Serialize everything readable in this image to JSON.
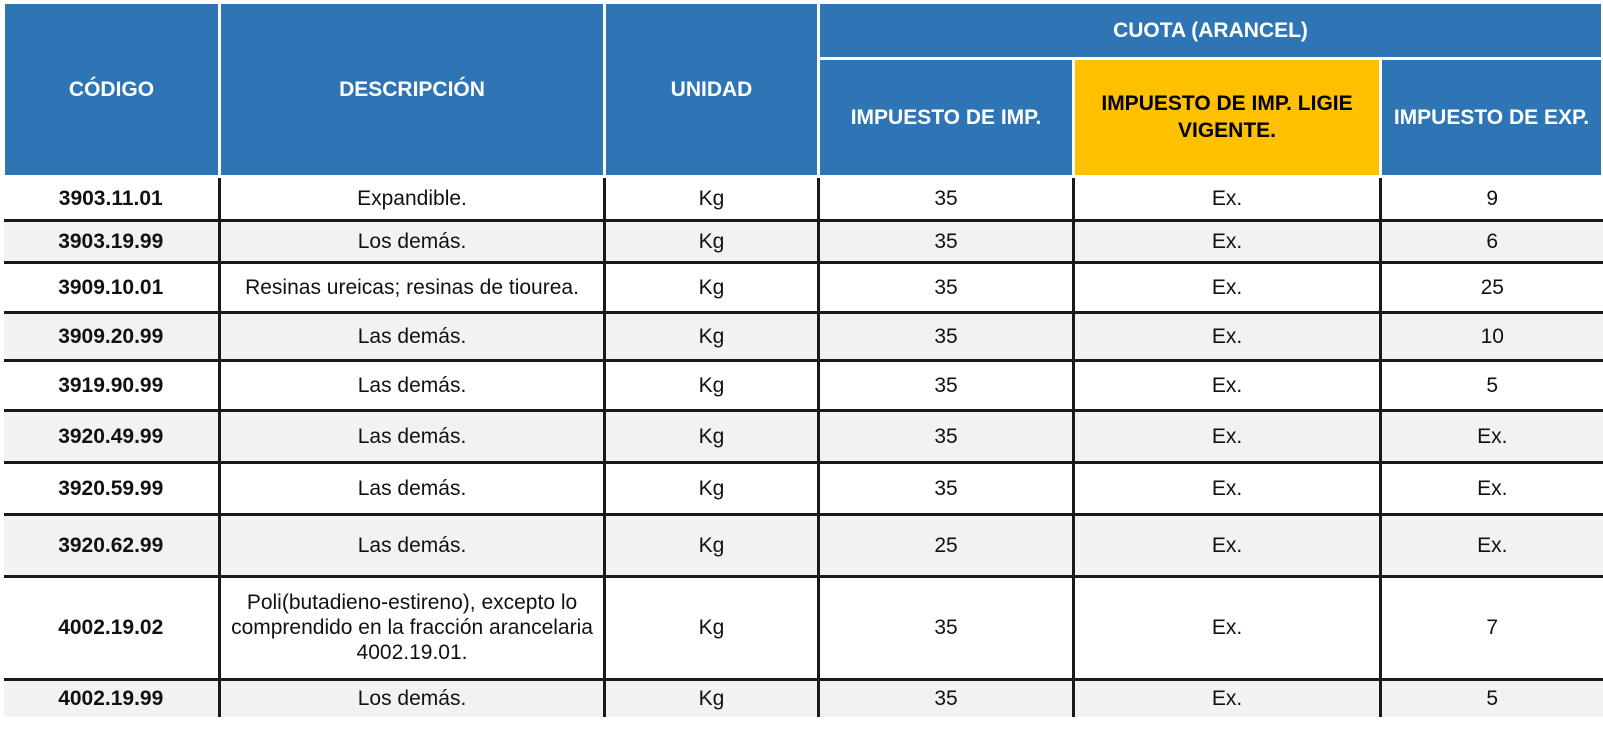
{
  "header": {
    "codigo": "CÓDIGO",
    "descripcion": "DESCRIPCIÓN",
    "unidad": "UNIDAD",
    "cuota": "CUOTA (ARANCEL)",
    "imp": "IMPUESTO DE IMP.",
    "imp_ligie": "IMPUESTO DE IMP. LIGIE VIGENTE.",
    "exp": "IMPUESTO DE EXP."
  },
  "colors": {
    "header_blue": "#2E75B6",
    "highlight_yellow": "#FFC000",
    "row_alt": "#F2F2F2"
  },
  "rows": [
    {
      "codigo": "3903.11.01",
      "descripcion": "Expandible.",
      "unidad": "Kg",
      "imp": "35",
      "imp_ligie": "Ex.",
      "exp": "9"
    },
    {
      "codigo": "3903.19.99",
      "descripcion": "Los demás.",
      "unidad": "Kg",
      "imp": "35",
      "imp_ligie": "Ex.",
      "exp": "6"
    },
    {
      "codigo": "3909.10.01",
      "descripcion": "Resinas ureicas; resinas de tiourea.",
      "unidad": "Kg",
      "imp": "35",
      "imp_ligie": "Ex.",
      "exp": "25"
    },
    {
      "codigo": "3909.20.99",
      "descripcion": "Las demás.",
      "unidad": "Kg",
      "imp": "35",
      "imp_ligie": "Ex.",
      "exp": "10"
    },
    {
      "codigo": "3919.90.99",
      "descripcion": "Las demás.",
      "unidad": "Kg",
      "imp": "35",
      "imp_ligie": "Ex.",
      "exp": "5"
    },
    {
      "codigo": "3920.49.99",
      "descripcion": "Las demás.",
      "unidad": "Kg",
      "imp": "35",
      "imp_ligie": "Ex.",
      "exp": "Ex."
    },
    {
      "codigo": "3920.59.99",
      "descripcion": "Las demás.",
      "unidad": "Kg",
      "imp": "35",
      "imp_ligie": "Ex.",
      "exp": "Ex."
    },
    {
      "codigo": "3920.62.99",
      "descripcion": "Las demás.",
      "unidad": "Kg",
      "imp": "25",
      "imp_ligie": "Ex.",
      "exp": "Ex."
    },
    {
      "codigo": "4002.19.02",
      "descripcion": "Poli(butadieno-estireno), excepto lo comprendido en la fracción arancelaria 4002.19.01.",
      "unidad": "Kg",
      "imp": "35",
      "imp_ligie": "Ex.",
      "exp": "7"
    },
    {
      "codigo": "4002.19.99",
      "descripcion": "Los demás.",
      "unidad": "Kg",
      "imp": "35",
      "imp_ligie": "Ex.",
      "exp": "5"
    }
  ]
}
